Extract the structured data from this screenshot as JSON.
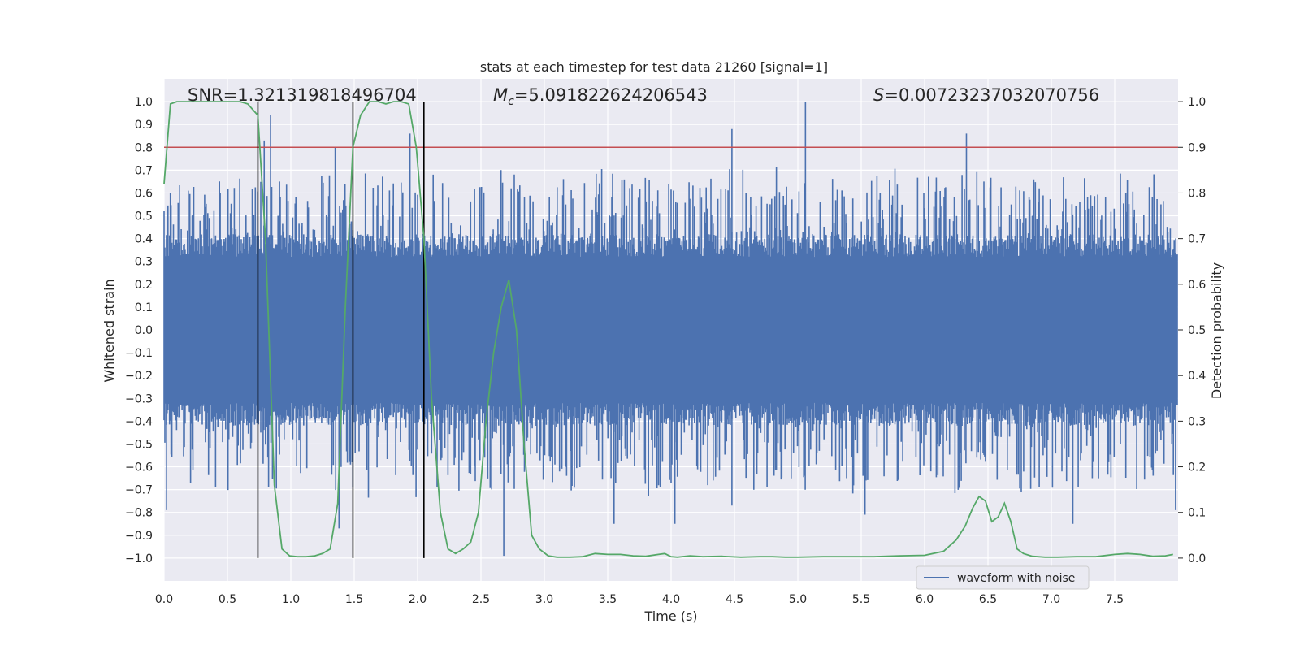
{
  "chart_data": {
    "type": "line",
    "title": "stats at each timestep for test data 21260 [signal=1]",
    "xlabel": "Time (s)",
    "ylabel": "Whitened strain",
    "ylabel_right": "Detection probability",
    "xlim": [
      0.0,
      8.0
    ],
    "ylim": [
      -1.1,
      1.1
    ],
    "ylim_right": [
      -0.05,
      1.05
    ],
    "xticks": [
      "0.0",
      "0.5",
      "1.0",
      "1.5",
      "2.0",
      "2.5",
      "3.0",
      "3.5",
      "4.0",
      "4.5",
      "5.0",
      "5.5",
      "6.0",
      "6.5",
      "7.0",
      "7.5"
    ],
    "xtick_values": [
      0.0,
      0.5,
      1.0,
      1.5,
      2.0,
      2.5,
      3.0,
      3.5,
      4.0,
      4.5,
      5.0,
      5.5,
      6.0,
      6.5,
      7.0,
      7.5
    ],
    "yticks": [
      "1.0",
      "0.9",
      "0.8",
      "0.7",
      "0.6",
      "0.5",
      "0.4",
      "0.3",
      "0.2",
      "0.1",
      "0.0",
      "−0.1",
      "−0.2",
      "−0.3",
      "−0.4",
      "−0.5",
      "−0.6",
      "−0.7",
      "−0.8",
      "−0.9",
      "−1.0"
    ],
    "ytick_values": [
      1.0,
      0.9,
      0.8,
      0.7,
      0.6,
      0.5,
      0.4,
      0.3,
      0.2,
      0.1,
      0.0,
      -0.1,
      -0.2,
      -0.3,
      -0.4,
      -0.5,
      -0.6,
      -0.7,
      -0.8,
      -0.9,
      -1.0
    ],
    "yticks_right": [
      "1.0",
      "0.9",
      "0.8",
      "0.7",
      "0.6",
      "0.5",
      "0.4",
      "0.3",
      "0.2",
      "0.1",
      "0.0"
    ],
    "ytick_values_right": [
      1.0,
      0.9,
      0.8,
      0.7,
      0.6,
      0.5,
      0.4,
      0.3,
      0.2,
      0.1,
      0.0
    ],
    "grid": true,
    "threshold": {
      "value": 0.9,
      "color": "#c44e52"
    },
    "vlines": [
      0.74,
      1.49,
      2.05
    ],
    "annotations": {
      "snr": "SNR=1.321319818496704",
      "mc_symbol": "M",
      "mc_sub": "c",
      "mc_value": "=5.091822624206543",
      "s_symbol": "S",
      "s_value": "=0.00723237032070756"
    },
    "legend": {
      "label": "waveform with noise",
      "position": "lower-right"
    },
    "series": [
      {
        "name": "waveform with noise",
        "axis": "left",
        "color": "#4c72b0",
        "description": "noise strain samples, typical amplitude about ±0.4, peaks near ±1",
        "spikes": [
          {
            "x": 0.84,
            "y": 0.94
          },
          {
            "x": 0.02,
            "y": -0.79
          },
          {
            "x": 1.38,
            "y": -0.87
          },
          {
            "x": 2.68,
            "y": -0.99
          },
          {
            "x": 5.06,
            "y": 1.0
          },
          {
            "x": 4.48,
            "y": 0.88
          },
          {
            "x": 6.33,
            "y": 0.86
          },
          {
            "x": 4.03,
            "y": -0.85
          },
          {
            "x": 3.55,
            "y": -0.85
          },
          {
            "x": 7.17,
            "y": -0.85
          },
          {
            "x": 4.48,
            "y": -0.77
          },
          {
            "x": 5.53,
            "y": -0.81
          },
          {
            "x": 7.98,
            "y": -0.79
          },
          {
            "x": 0.79,
            "y": 0.83
          },
          {
            "x": 1.35,
            "y": 0.8
          },
          {
            "x": 1.94,
            "y": 0.86
          }
        ]
      },
      {
        "name": "detection probability",
        "axis": "right",
        "color": "#55a868",
        "x": [
          0.0,
          0.05,
          0.1,
          0.2,
          0.3,
          0.4,
          0.5,
          0.6,
          0.66,
          0.74,
          0.8,
          0.87,
          0.93,
          0.99,
          1.05,
          1.12,
          1.19,
          1.25,
          1.31,
          1.37,
          1.43,
          1.49,
          1.55,
          1.62,
          1.69,
          1.75,
          1.81,
          1.87,
          1.93,
          1.99,
          2.05,
          2.11,
          2.18,
          2.24,
          2.3,
          2.36,
          2.42,
          2.48,
          2.54,
          2.6,
          2.66,
          2.72,
          2.78,
          2.84,
          2.9,
          2.96,
          3.03,
          3.1,
          3.2,
          3.3,
          3.4,
          3.5,
          3.6,
          3.7,
          3.8,
          3.9,
          3.95,
          4.0,
          4.05,
          4.15,
          4.25,
          4.4,
          4.55,
          4.7,
          4.8,
          4.9,
          5.0,
          5.2,
          5.4,
          5.6,
          5.8,
          6.0,
          6.15,
          6.25,
          6.32,
          6.38,
          6.43,
          6.48,
          6.53,
          6.58,
          6.63,
          6.68,
          6.73,
          6.78,
          6.85,
          6.95,
          7.05,
          7.2,
          7.35,
          7.5,
          7.6,
          7.7,
          7.8,
          7.9,
          7.96
        ],
        "y": [
          0.82,
          0.995,
          1.0,
          1.0,
          1.0,
          1.0,
          1.0,
          1.0,
          0.995,
          0.97,
          0.7,
          0.16,
          0.02,
          0.005,
          0.003,
          0.003,
          0.005,
          0.01,
          0.02,
          0.12,
          0.55,
          0.9,
          0.97,
          1.0,
          1.0,
          0.995,
          1.0,
          1.0,
          0.995,
          0.9,
          0.7,
          0.35,
          0.1,
          0.02,
          0.01,
          0.02,
          0.035,
          0.1,
          0.3,
          0.45,
          0.55,
          0.61,
          0.5,
          0.25,
          0.05,
          0.02,
          0.005,
          0.002,
          0.002,
          0.003,
          0.01,
          0.008,
          0.008,
          0.005,
          0.004,
          0.008,
          0.01,
          0.003,
          0.002,
          0.005,
          0.003,
          0.004,
          0.002,
          0.003,
          0.003,
          0.002,
          0.002,
          0.003,
          0.003,
          0.003,
          0.005,
          0.006,
          0.015,
          0.04,
          0.07,
          0.11,
          0.135,
          0.125,
          0.08,
          0.09,
          0.12,
          0.08,
          0.02,
          0.01,
          0.004,
          0.002,
          0.002,
          0.003,
          0.003,
          0.008,
          0.01,
          0.008,
          0.004,
          0.005,
          0.008
        ]
      }
    ]
  }
}
